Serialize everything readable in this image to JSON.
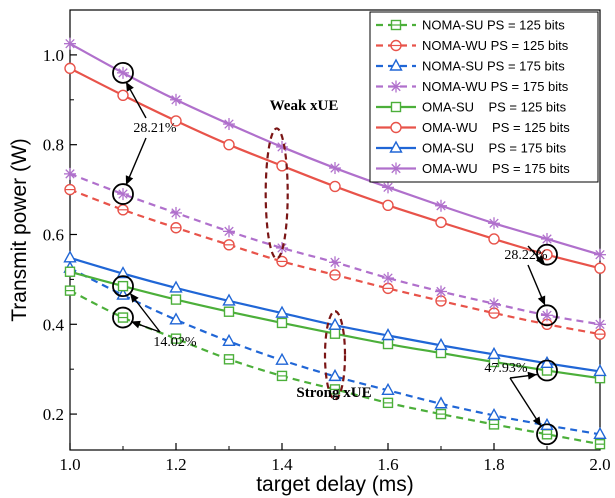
{
  "chart_data": {
    "type": "line",
    "title": "",
    "xlabel": "target delay (ms)",
    "ylabel": "Transmit power (W)",
    "xlim": [
      1.0,
      2.0
    ],
    "ylim": [
      0.12,
      1.1
    ],
    "x_ticks": [
      "1.0",
      "1.2",
      "1.4",
      "1.6",
      "1.8",
      "2.0"
    ],
    "y_ticks": [
      "0.2",
      "0.4",
      "0.6",
      "0.8",
      "1.0"
    ],
    "grid": false,
    "legend_position": "top-right",
    "x": [
      1.0,
      1.1,
      1.2,
      1.3,
      1.4,
      1.5,
      1.6,
      1.7,
      1.8,
      1.9,
      2.0
    ],
    "series": [
      {
        "name": "NOMA-SU PS = 125 bits",
        "color": "#4caf3a",
        "dash": true,
        "marker": "square-dot",
        "values": [
          0.475,
          0.415,
          0.368,
          0.322,
          0.285,
          0.255,
          0.225,
          0.2,
          0.177,
          0.155,
          0.133
        ]
      },
      {
        "name": "NOMA-WU PS = 125 bits",
        "color": "#e8534a",
        "dash": true,
        "marker": "circle-dot",
        "values": [
          0.7,
          0.655,
          0.615,
          0.577,
          0.54,
          0.51,
          0.48,
          0.452,
          0.425,
          0.4,
          0.378
        ]
      },
      {
        "name": "NOMA-SU PS = 175 bits",
        "color": "#2066d6",
        "dash": true,
        "marker": "triangle",
        "values": [
          0.525,
          0.465,
          0.41,
          0.362,
          0.32,
          0.284,
          0.253,
          0.223,
          0.197,
          0.175,
          0.155
        ]
      },
      {
        "name": "NOMA-WU PS = 175 bits",
        "color": "#b070cc",
        "dash": true,
        "marker": "star",
        "values": [
          0.735,
          0.69,
          0.648,
          0.607,
          0.57,
          0.538,
          0.503,
          0.473,
          0.446,
          0.42,
          0.4
        ]
      },
      {
        "name": "OMA-SU    PS = 125 bits",
        "color": "#4caf3a",
        "dash": false,
        "marker": "square",
        "values": [
          0.517,
          0.485,
          0.455,
          0.428,
          0.403,
          0.379,
          0.356,
          0.336,
          0.316,
          0.297,
          0.28
        ]
      },
      {
        "name": "OMA-WU    PS = 125 bits",
        "color": "#e8534a",
        "dash": false,
        "marker": "circle",
        "values": [
          0.97,
          0.91,
          0.853,
          0.8,
          0.753,
          0.707,
          0.665,
          0.627,
          0.59,
          0.555,
          0.525
        ]
      },
      {
        "name": "OMA-SU    PS = 175 bits",
        "color": "#2066d6",
        "dash": false,
        "marker": "triangle",
        "values": [
          0.548,
          0.513,
          0.481,
          0.452,
          0.425,
          0.398,
          0.375,
          0.353,
          0.333,
          0.313,
          0.295
        ]
      },
      {
        "name": "OMA-WU    PS = 175 bits",
        "color": "#b070cc",
        "dash": false,
        "marker": "star",
        "values": [
          1.025,
          0.96,
          0.9,
          0.846,
          0.795,
          0.748,
          0.705,
          0.664,
          0.625,
          0.59,
          0.555
        ]
      }
    ],
    "annotations": {
      "percent_weak_left": "28.21%",
      "percent_weak_right": "28.22%",
      "percent_strong_left": "14.02%",
      "percent_strong_right": "47.93%",
      "label_weak": "Weak xUE",
      "label_strong": "Strong xUE"
    }
  }
}
